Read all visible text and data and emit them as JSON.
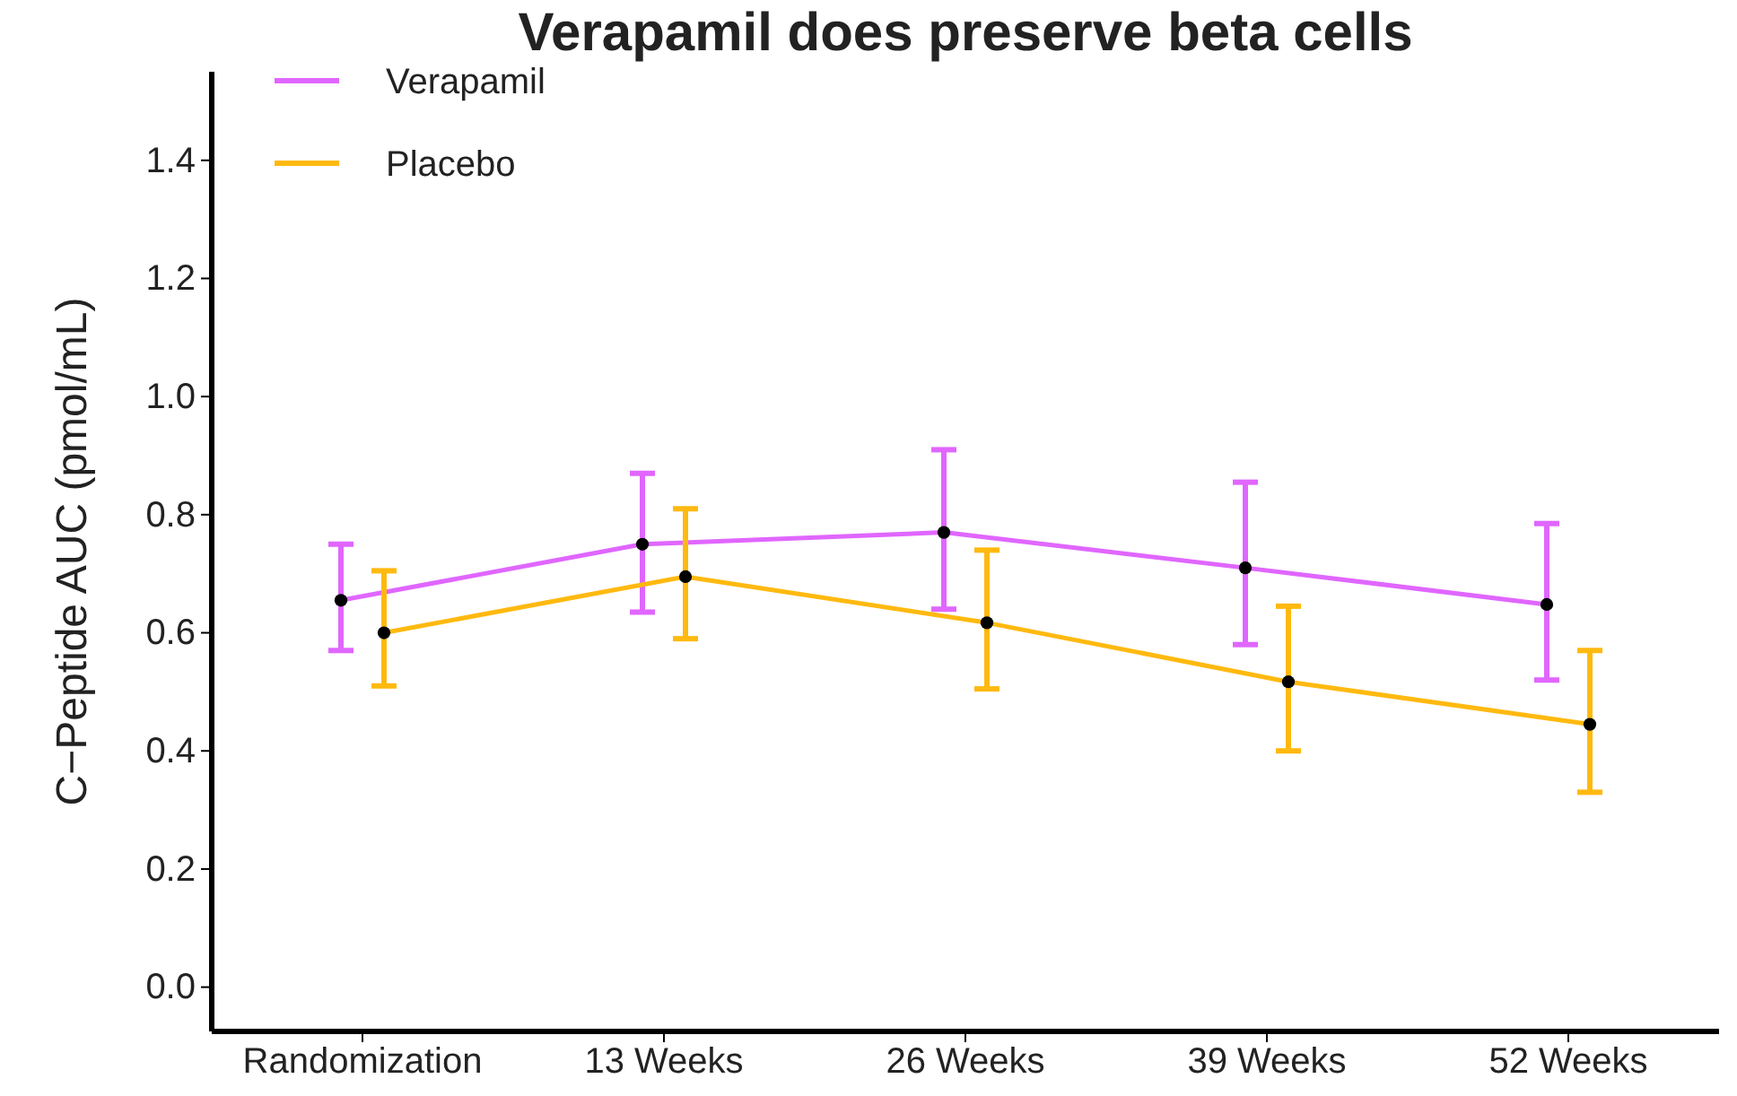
{
  "chart_data": {
    "type": "line",
    "title": "Verapamil does preserve beta cells",
    "ylabel": "C−Peptide AUC (pmol/mL)",
    "categories": [
      "Randomization",
      "13 Weeks",
      "26 Weeks",
      "39 Weeks",
      "52 Weeks"
    ],
    "ylim": [
      -0.075,
      1.55
    ],
    "yticks": [
      {
        "value": 0,
        "label": "0.0"
      },
      0.2,
      0.4,
      0.6,
      0.8,
      {
        "value": 1,
        "label": "1.0"
      },
      1.2,
      1.4
    ],
    "series": [
      {
        "name": "Verapamil",
        "color": "#e066ff",
        "values": [
          0.655,
          0.75,
          0.77,
          0.71,
          0.648
        ],
        "errors": [
          [
            0.57,
            0.75
          ],
          [
            0.635,
            0.87
          ],
          [
            0.64,
            0.91
          ],
          [
            0.58,
            0.855
          ],
          [
            0.52,
            0.785
          ]
        ]
      },
      {
        "name": "Placebo",
        "color": "#ffb90f",
        "values": [
          0.6,
          0.695,
          0.617,
          0.517,
          0.445
        ],
        "errors": [
          [
            0.51,
            0.705
          ],
          [
            0.59,
            0.81
          ],
          [
            0.505,
            0.74
          ],
          [
            0.4,
            0.645
          ],
          [
            0.33,
            0.57
          ]
        ]
      }
    ],
    "marker": "circle",
    "legend": "top left",
    "grid": false
  }
}
